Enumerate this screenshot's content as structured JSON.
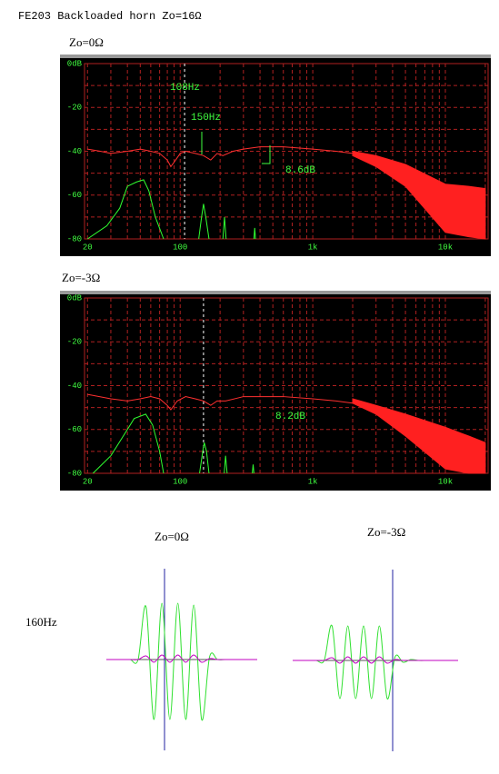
{
  "heading": "FE203  Backloaded horn     Zo=16Ω",
  "row_label": "160Hz",
  "chart_data": [
    {
      "type": "line",
      "title": "Zo=0Ω",
      "xscale": "log",
      "xlim": [
        19,
        21000
      ],
      "xticks": [
        20,
        100,
        {
          "value": 1000,
          "label": "1k"
        },
        {
          "value": 10000,
          "label": "10k"
        }
      ],
      "xminor": [
        30,
        40,
        50,
        60,
        70,
        80,
        90,
        200,
        300,
        400,
        500,
        600,
        700,
        800,
        900,
        2000,
        3000,
        4000,
        5000,
        6000,
        7000,
        8000,
        9000,
        20000
      ],
      "ylim": [
        -80,
        0
      ],
      "yticks": [
        {
          "value": 0,
          "label": "0dB"
        },
        -20,
        -40,
        -60,
        -80
      ],
      "yminor": [
        -10,
        -30,
        -50,
        -70
      ],
      "grid": true,
      "grid_color": "#b02020",
      "marker_x": 108,
      "annotations": [
        "108Hz",
        "150Hz",
        "8.6dB"
      ],
      "series": [
        {
          "color": "#ff3030",
          "x": [
            20,
            25,
            30,
            40,
            50,
            60,
            70,
            80,
            85,
            90,
            100,
            110,
            130,
            150,
            170,
            190,
            210,
            250,
            300,
            400,
            600,
            1000,
            1500,
            2000
          ],
          "values": [
            -39,
            -40,
            -41,
            -40,
            -39,
            -40,
            -41,
            -44,
            -47,
            -45,
            -41,
            -40,
            -41,
            -42,
            -44,
            -41,
            -42,
            -40,
            -39,
            -38,
            -38,
            -39,
            -40,
            -41
          ]
        },
        {
          "color": "#30ff30",
          "x": [
            20,
            28,
            35,
            40,
            47,
            53,
            58,
            65,
            75,
            100,
            138,
            145,
            150,
            156,
            165,
            200,
            210,
            216,
            222,
            250,
            360,
            365,
            370
          ],
          "values": [
            -80,
            -74,
            -66,
            -56,
            -54,
            -53,
            -58,
            -70,
            -80,
            null,
            -80,
            -70,
            -64,
            -70,
            -80,
            null,
            -80,
            -70,
            -80,
            null,
            -80,
            -75,
            -80
          ]
        }
      ],
      "band": {
        "color": "#ff2020",
        "x": [
          2000,
          3000,
          5000,
          10000,
          15000,
          20000
        ],
        "upper": [
          -40,
          -42,
          -46,
          -55,
          -56,
          -57
        ],
        "lower": [
          -42,
          -47,
          -56,
          -77,
          -79,
          -80
        ]
      }
    },
    {
      "type": "line",
      "title": "Zo=-3Ω",
      "xscale": "log",
      "xlim": [
        19,
        21000
      ],
      "xticks": [
        20,
        100,
        {
          "value": 1000,
          "label": "1k"
        },
        {
          "value": 10000,
          "label": "10k"
        }
      ],
      "xminor": [
        30,
        40,
        50,
        60,
        70,
        80,
        90,
        200,
        300,
        400,
        500,
        600,
        700,
        800,
        900,
        2000,
        3000,
        4000,
        5000,
        6000,
        7000,
        8000,
        9000,
        20000
      ],
      "ylim": [
        -80,
        0
      ],
      "yticks": [
        {
          "value": 0,
          "label": "0dB"
        },
        -20,
        -40,
        -60,
        -80
      ],
      "yminor": [
        -10,
        -30,
        -50,
        -70
      ],
      "grid": true,
      "grid_color": "#b02020",
      "marker_x": 150,
      "annotations": [
        "8.2dB"
      ],
      "series": [
        {
          "color": "#ff3030",
          "x": [
            20,
            30,
            40,
            50,
            60,
            70,
            80,
            85,
            95,
            110,
            130,
            150,
            170,
            190,
            220,
            300,
            400,
            600,
            1000,
            1500,
            2000
          ],
          "values": [
            -44,
            -46,
            -47,
            -46,
            -45,
            -46,
            -49,
            -51,
            -47,
            -45,
            -46,
            -47,
            -49,
            -47,
            -47,
            -45,
            -45,
            -45,
            -46,
            -47,
            -48
          ]
        },
        {
          "color": "#30ff30",
          "x": [
            22,
            30,
            40,
            45,
            55,
            62,
            70,
            75,
            100,
            140,
            148,
            152,
            158,
            165,
            200,
            215,
            220,
            226,
            300,
            350,
            355,
            360
          ],
          "values": [
            -80,
            -72,
            -60,
            -55,
            -53,
            -58,
            -70,
            -80,
            null,
            -80,
            -70,
            -66,
            -70,
            -80,
            null,
            -80,
            -72,
            -80,
            null,
            -80,
            -76,
            -80
          ]
        }
      ],
      "band": {
        "color": "#ff2020",
        "x": [
          2000,
          3000,
          5000,
          10000,
          15000,
          20000
        ],
        "upper": [
          -46,
          -49,
          -53,
          -59,
          -63,
          -66
        ],
        "lower": [
          -48,
          -53,
          -63,
          -78,
          -80,
          -80
        ]
      }
    },
    {
      "type": "wave",
      "title": "Zo=0Ω",
      "ylim": [
        -100,
        100
      ],
      "series": [
        {
          "color": "#30e030",
          "values": [
            0,
            0,
            0,
            0,
            0,
            58,
            -66,
            62,
            -66,
            62,
            -66,
            60,
            -66,
            3,
            0,
            0,
            0,
            0,
            0,
            0
          ]
        },
        {
          "color": "#c000c0",
          "values": [
            0,
            0,
            0,
            0,
            0,
            4,
            -3,
            5,
            -3,
            5,
            -3,
            5,
            -3,
            1,
            0,
            0,
            0,
            0,
            0,
            0
          ]
        }
      ]
    },
    {
      "type": "wave",
      "title": "Zo=-3Ω",
      "ylim": [
        -100,
        100
      ],
      "series": [
        {
          "color": "#30e030",
          "values": [
            0,
            0,
            0,
            0,
            0,
            38,
            -42,
            38,
            -42,
            38,
            -42,
            38,
            -42,
            4,
            -2,
            1,
            0,
            0,
            0,
            0,
            0,
            0
          ]
        },
        {
          "color": "#c000c0",
          "values": [
            0,
            0,
            0,
            0,
            0,
            3,
            -3,
            4,
            -3,
            4,
            -3,
            4,
            -3,
            1,
            0,
            0,
            0,
            0,
            0,
            0,
            0,
            0
          ]
        }
      ]
    }
  ]
}
